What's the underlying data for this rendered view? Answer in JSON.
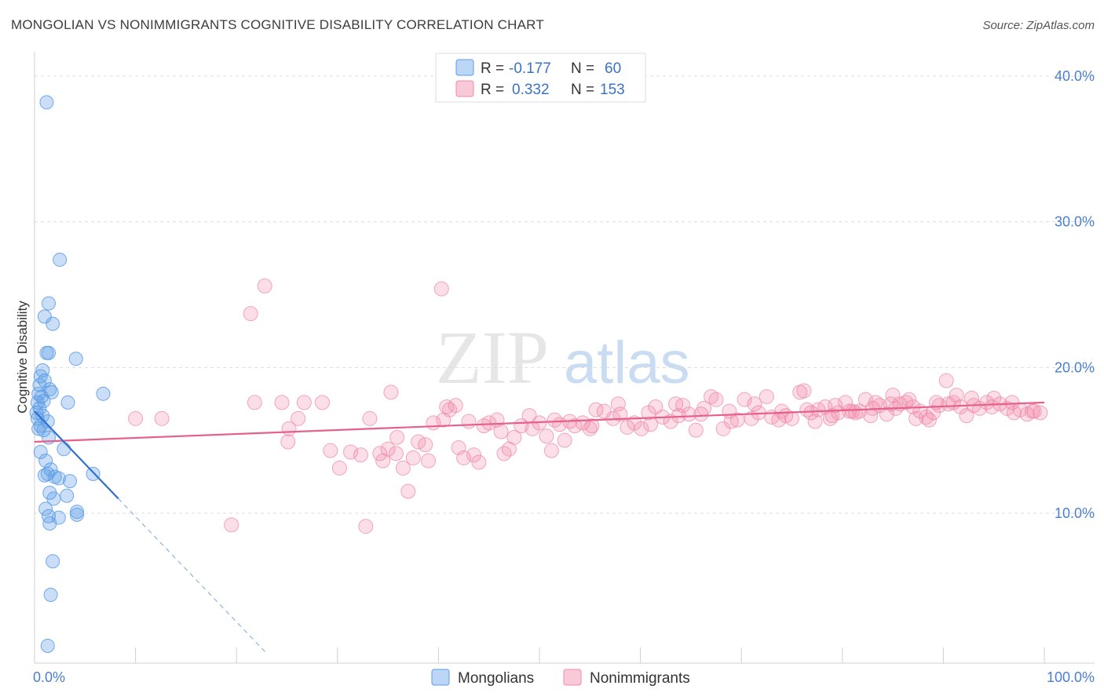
{
  "title": "MONGOLIAN VS NONIMMIGRANTS COGNITIVE DISABILITY CORRELATION CHART",
  "source": "Source: ZipAtlas.com",
  "watermark": {
    "zip": "ZIP",
    "atlas": "atlas"
  },
  "chart_data": {
    "type": "scatter",
    "title": "MONGOLIAN VS NONIMMIGRANTS COGNITIVE DISABILITY CORRELATION CHART",
    "xlabel": "",
    "ylabel": "Cognitive Disability",
    "xlim": [
      0,
      100
    ],
    "ylim": [
      0,
      41.5
    ],
    "x_tick_labels": [
      "0.0%",
      "100.0%"
    ],
    "y_ticks": [
      10,
      20,
      30,
      40
    ],
    "y_tick_labels": [
      "10.0%",
      "20.0%",
      "30.0%",
      "40.0%"
    ],
    "grid": "horizontal-dashed",
    "legend_position": "top-center",
    "colors": {
      "mongolians": "#5b9be6",
      "nonimmigrants": "#f08aaa",
      "mongolians_line": "#2f6fd0",
      "nonimmigrants_line": "#e5608c"
    },
    "legend_stats": [
      {
        "r_label": "R = ",
        "r": "-0.177",
        "n_label": "N = ",
        "n": "60"
      },
      {
        "r_label": "R = ",
        "r": "0.332",
        "n_label": "N = ",
        "n": "153"
      }
    ],
    "series": [
      {
        "name": "Mongolians",
        "trendline": {
          "x0": 0,
          "y0": 17.0,
          "x1": 8.3,
          "y1": 11.0,
          "dashed_to_x": 23.0
        },
        "points": [
          [
            1.2,
            38.2
          ],
          [
            2.5,
            27.4
          ],
          [
            1.4,
            24.4
          ],
          [
            1.0,
            23.5
          ],
          [
            1.8,
            23.0
          ],
          [
            1.2,
            21.0
          ],
          [
            1.4,
            21.0
          ],
          [
            4.1,
            20.6
          ],
          [
            0.8,
            19.8
          ],
          [
            0.6,
            19.4
          ],
          [
            1.0,
            19.1
          ],
          [
            0.5,
            18.8
          ],
          [
            1.5,
            18.5
          ],
          [
            1.7,
            18.3
          ],
          [
            0.4,
            18.2
          ],
          [
            0.7,
            18.0
          ],
          [
            0.9,
            17.7
          ],
          [
            6.8,
            18.2
          ],
          [
            3.3,
            17.6
          ],
          [
            0.3,
            17.6
          ],
          [
            0.5,
            17.2
          ],
          [
            0.2,
            16.9
          ],
          [
            0.8,
            16.7
          ],
          [
            0.3,
            16.5
          ],
          [
            1.3,
            16.3
          ],
          [
            0.6,
            16.0
          ],
          [
            0.4,
            15.8
          ],
          [
            0.9,
            15.7
          ],
          [
            1.4,
            15.2
          ],
          [
            2.9,
            14.4
          ],
          [
            0.6,
            14.2
          ],
          [
            1.1,
            13.6
          ],
          [
            1.6,
            13.0
          ],
          [
            1.3,
            12.7
          ],
          [
            1.0,
            12.6
          ],
          [
            2.0,
            12.5
          ],
          [
            2.4,
            12.4
          ],
          [
            3.5,
            12.2
          ],
          [
            5.8,
            12.7
          ],
          [
            1.5,
            11.4
          ],
          [
            3.2,
            11.2
          ],
          [
            1.9,
            11.0
          ],
          [
            1.1,
            10.3
          ],
          [
            4.2,
            10.1
          ],
          [
            4.2,
            9.9
          ],
          [
            1.4,
            9.8
          ],
          [
            2.4,
            9.7
          ],
          [
            1.5,
            9.3
          ],
          [
            1.8,
            6.7
          ],
          [
            1.6,
            4.4
          ],
          [
            1.3,
            0.9
          ]
        ]
      },
      {
        "name": "Nonimmigrants",
        "trendline": {
          "x0": 0,
          "y0": 14.9,
          "x1": 100,
          "y1": 17.6
        },
        "points": [
          [
            22.8,
            25.6
          ],
          [
            40.3,
            25.4
          ],
          [
            21.4,
            23.7
          ],
          [
            35.3,
            18.3
          ],
          [
            21.8,
            17.6
          ],
          [
            24.5,
            17.6
          ],
          [
            26.7,
            17.6
          ],
          [
            28.5,
            17.6
          ],
          [
            40.8,
            17.3
          ],
          [
            10.0,
            16.5
          ],
          [
            12.6,
            16.5
          ],
          [
            26.1,
            16.5
          ],
          [
            33.2,
            16.5
          ],
          [
            25.2,
            15.8
          ],
          [
            29.3,
            14.3
          ],
          [
            31.3,
            14.2
          ],
          [
            30.2,
            13.1
          ],
          [
            25.1,
            14.9
          ],
          [
            32.3,
            14.0
          ],
          [
            34.2,
            14.1
          ],
          [
            35.0,
            14.4
          ],
          [
            35.8,
            14.1
          ],
          [
            37.5,
            13.8
          ],
          [
            36.5,
            13.1
          ],
          [
            35.9,
            15.2
          ],
          [
            38.0,
            14.9
          ],
          [
            38.7,
            14.7
          ],
          [
            39.5,
            16.2
          ],
          [
            40.5,
            16.4
          ],
          [
            41.1,
            17.1
          ],
          [
            42.0,
            14.5
          ],
          [
            42.5,
            13.8
          ],
          [
            43.5,
            14.0
          ],
          [
            44.0,
            13.5
          ],
          [
            45.0,
            16.2
          ],
          [
            45.8,
            16.4
          ],
          [
            46.5,
            14.1
          ],
          [
            47.0,
            14.4
          ],
          [
            47.5,
            15.2
          ],
          [
            48.2,
            16.0
          ],
          [
            49.3,
            15.8
          ],
          [
            50.0,
            16.2
          ],
          [
            50.7,
            15.3
          ],
          [
            51.2,
            14.3
          ],
          [
            52.0,
            16.1
          ],
          [
            52.5,
            15.0
          ],
          [
            53.5,
            16.0
          ],
          [
            54.3,
            16.2
          ],
          [
            55.0,
            15.8
          ],
          [
            55.6,
            17.1
          ],
          [
            56.4,
            17.0
          ],
          [
            57.3,
            16.5
          ],
          [
            58.0,
            16.8
          ],
          [
            58.7,
            15.9
          ],
          [
            59.4,
            16.2
          ],
          [
            60.1,
            15.8
          ],
          [
            60.8,
            16.9
          ],
          [
            61.5,
            17.3
          ],
          [
            62.2,
            16.6
          ],
          [
            63.0,
            16.3
          ],
          [
            63.5,
            17.5
          ],
          [
            64.2,
            17.4
          ],
          [
            64.8,
            16.8
          ],
          [
            65.5,
            15.7
          ],
          [
            66.3,
            17.2
          ],
          [
            67.0,
            18.0
          ],
          [
            67.5,
            17.8
          ],
          [
            68.2,
            15.8
          ],
          [
            68.8,
            17.0
          ],
          [
            69.6,
            16.4
          ],
          [
            70.3,
            17.8
          ],
          [
            71.0,
            16.5
          ],
          [
            71.7,
            16.9
          ],
          [
            72.5,
            18.0
          ],
          [
            73.0,
            16.6
          ],
          [
            73.7,
            16.4
          ],
          [
            74.4,
            16.7
          ],
          [
            75.0,
            16.5
          ],
          [
            75.8,
            18.3
          ],
          [
            76.2,
            18.4
          ],
          [
            76.9,
            16.9
          ],
          [
            77.6,
            17.1
          ],
          [
            78.3,
            17.3
          ],
          [
            79.0,
            16.7
          ],
          [
            79.6,
            16.9
          ],
          [
            80.3,
            17.6
          ],
          [
            81.0,
            17.0
          ],
          [
            81.7,
            17.0
          ],
          [
            82.3,
            17.8
          ],
          [
            83.0,
            17.2
          ],
          [
            83.7,
            17.4
          ],
          [
            84.4,
            16.8
          ],
          [
            85.0,
            18.1
          ],
          [
            85.7,
            17.5
          ],
          [
            86.3,
            17.6
          ],
          [
            87.0,
            17.3
          ],
          [
            87.7,
            17.0
          ],
          [
            88.3,
            16.6
          ],
          [
            89.0,
            16.9
          ],
          [
            89.6,
            17.4
          ],
          [
            90.3,
            19.1
          ],
          [
            91.0,
            17.6
          ],
          [
            91.7,
            17.3
          ],
          [
            92.3,
            16.7
          ],
          [
            93.0,
            17.4
          ],
          [
            93.6,
            17.2
          ],
          [
            94.3,
            17.6
          ],
          [
            95.0,
            17.9
          ],
          [
            95.6,
            17.5
          ],
          [
            96.3,
            17.2
          ],
          [
            97.0,
            16.9
          ],
          [
            97.6,
            17.1
          ],
          [
            98.3,
            16.8
          ],
          [
            99.0,
            17.0
          ],
          [
            99.6,
            16.9
          ],
          [
            90.5,
            17.5
          ],
          [
            88.6,
            16.4
          ],
          [
            86.6,
            17.8
          ],
          [
            84.8,
            17.5
          ],
          [
            82.8,
            16.7
          ],
          [
            80.7,
            17.0
          ],
          [
            78.8,
            16.5
          ],
          [
            76.5,
            17.1
          ],
          [
            74.0,
            17.0
          ],
          [
            71.3,
            17.5
          ],
          [
            69.0,
            16.3
          ],
          [
            66.0,
            16.8
          ],
          [
            63.8,
            16.7
          ],
          [
            61.0,
            16.1
          ],
          [
            57.8,
            17.5
          ],
          [
            55.2,
            16.0
          ],
          [
            53.0,
            16.3
          ],
          [
            51.5,
            16.4
          ],
          [
            49.0,
            16.7
          ],
          [
            46.2,
            15.6
          ],
          [
            44.5,
            16.0
          ],
          [
            43.0,
            16.3
          ],
          [
            41.7,
            17.4
          ],
          [
            39.0,
            13.6
          ],
          [
            37.0,
            11.5
          ],
          [
            34.5,
            13.6
          ],
          [
            32.8,
            9.1
          ],
          [
            19.5,
            9.2
          ],
          [
            94.8,
            17.3
          ],
          [
            96.8,
            17.6
          ],
          [
            98.8,
            17.0
          ],
          [
            92.8,
            17.9
          ],
          [
            91.3,
            18.1
          ],
          [
            89.3,
            17.6
          ],
          [
            87.3,
            16.5
          ],
          [
            85.3,
            17.2
          ],
          [
            83.3,
            17.6
          ],
          [
            81.3,
            16.9
          ],
          [
            79.3,
            17.4
          ],
          [
            77.3,
            16.3
          ]
        ]
      }
    ]
  },
  "legend": {
    "series1": "Mongolians",
    "series2": "Nonimmigrants"
  }
}
